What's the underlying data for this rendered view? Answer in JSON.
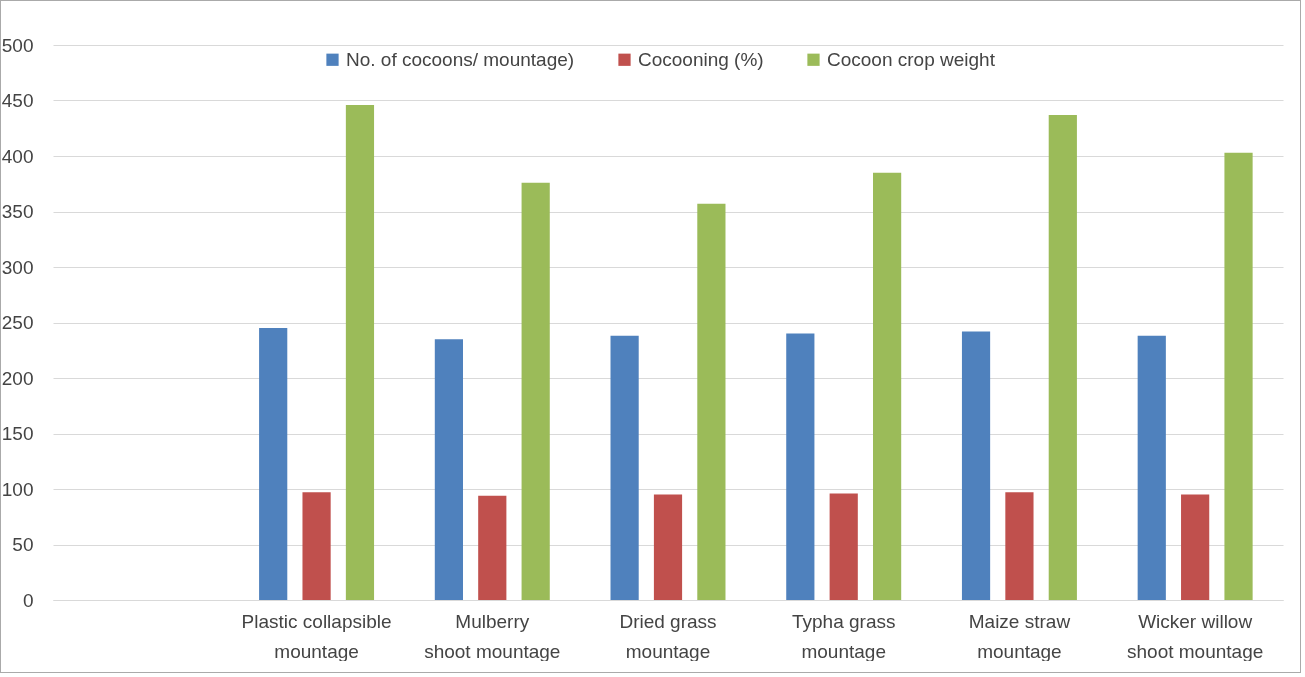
{
  "chart_data": {
    "type": "bar",
    "categories": [
      null,
      "Plastic collapsible mountage",
      "Mulberry shoot mountage",
      "Dried grass mountage",
      "Typha grass mountage",
      "Maize straw mountage",
      "Wicker willow shoot mountage"
    ],
    "series": [
      {
        "name": "No. of cocoons/ mountage)",
        "color": "#4f81bd",
        "values": [
          null,
          245,
          235,
          238,
          240,
          242,
          238
        ]
      },
      {
        "name": "Cocooning (%)",
        "color": "#c0504d",
        "values": [
          null,
          97,
          94,
          95,
          96,
          97,
          95
        ]
      },
      {
        "name": "Cocoon crop weight",
        "color": "#9bbb59",
        "values": [
          null,
          446,
          376,
          357,
          385,
          437,
          403
        ]
      }
    ],
    "ylim": [
      0,
      500
    ],
    "yticks": [
      0,
      50,
      100,
      150,
      200,
      250,
      300,
      350,
      400,
      450,
      500
    ],
    "grid": "y",
    "legend": "top"
  }
}
